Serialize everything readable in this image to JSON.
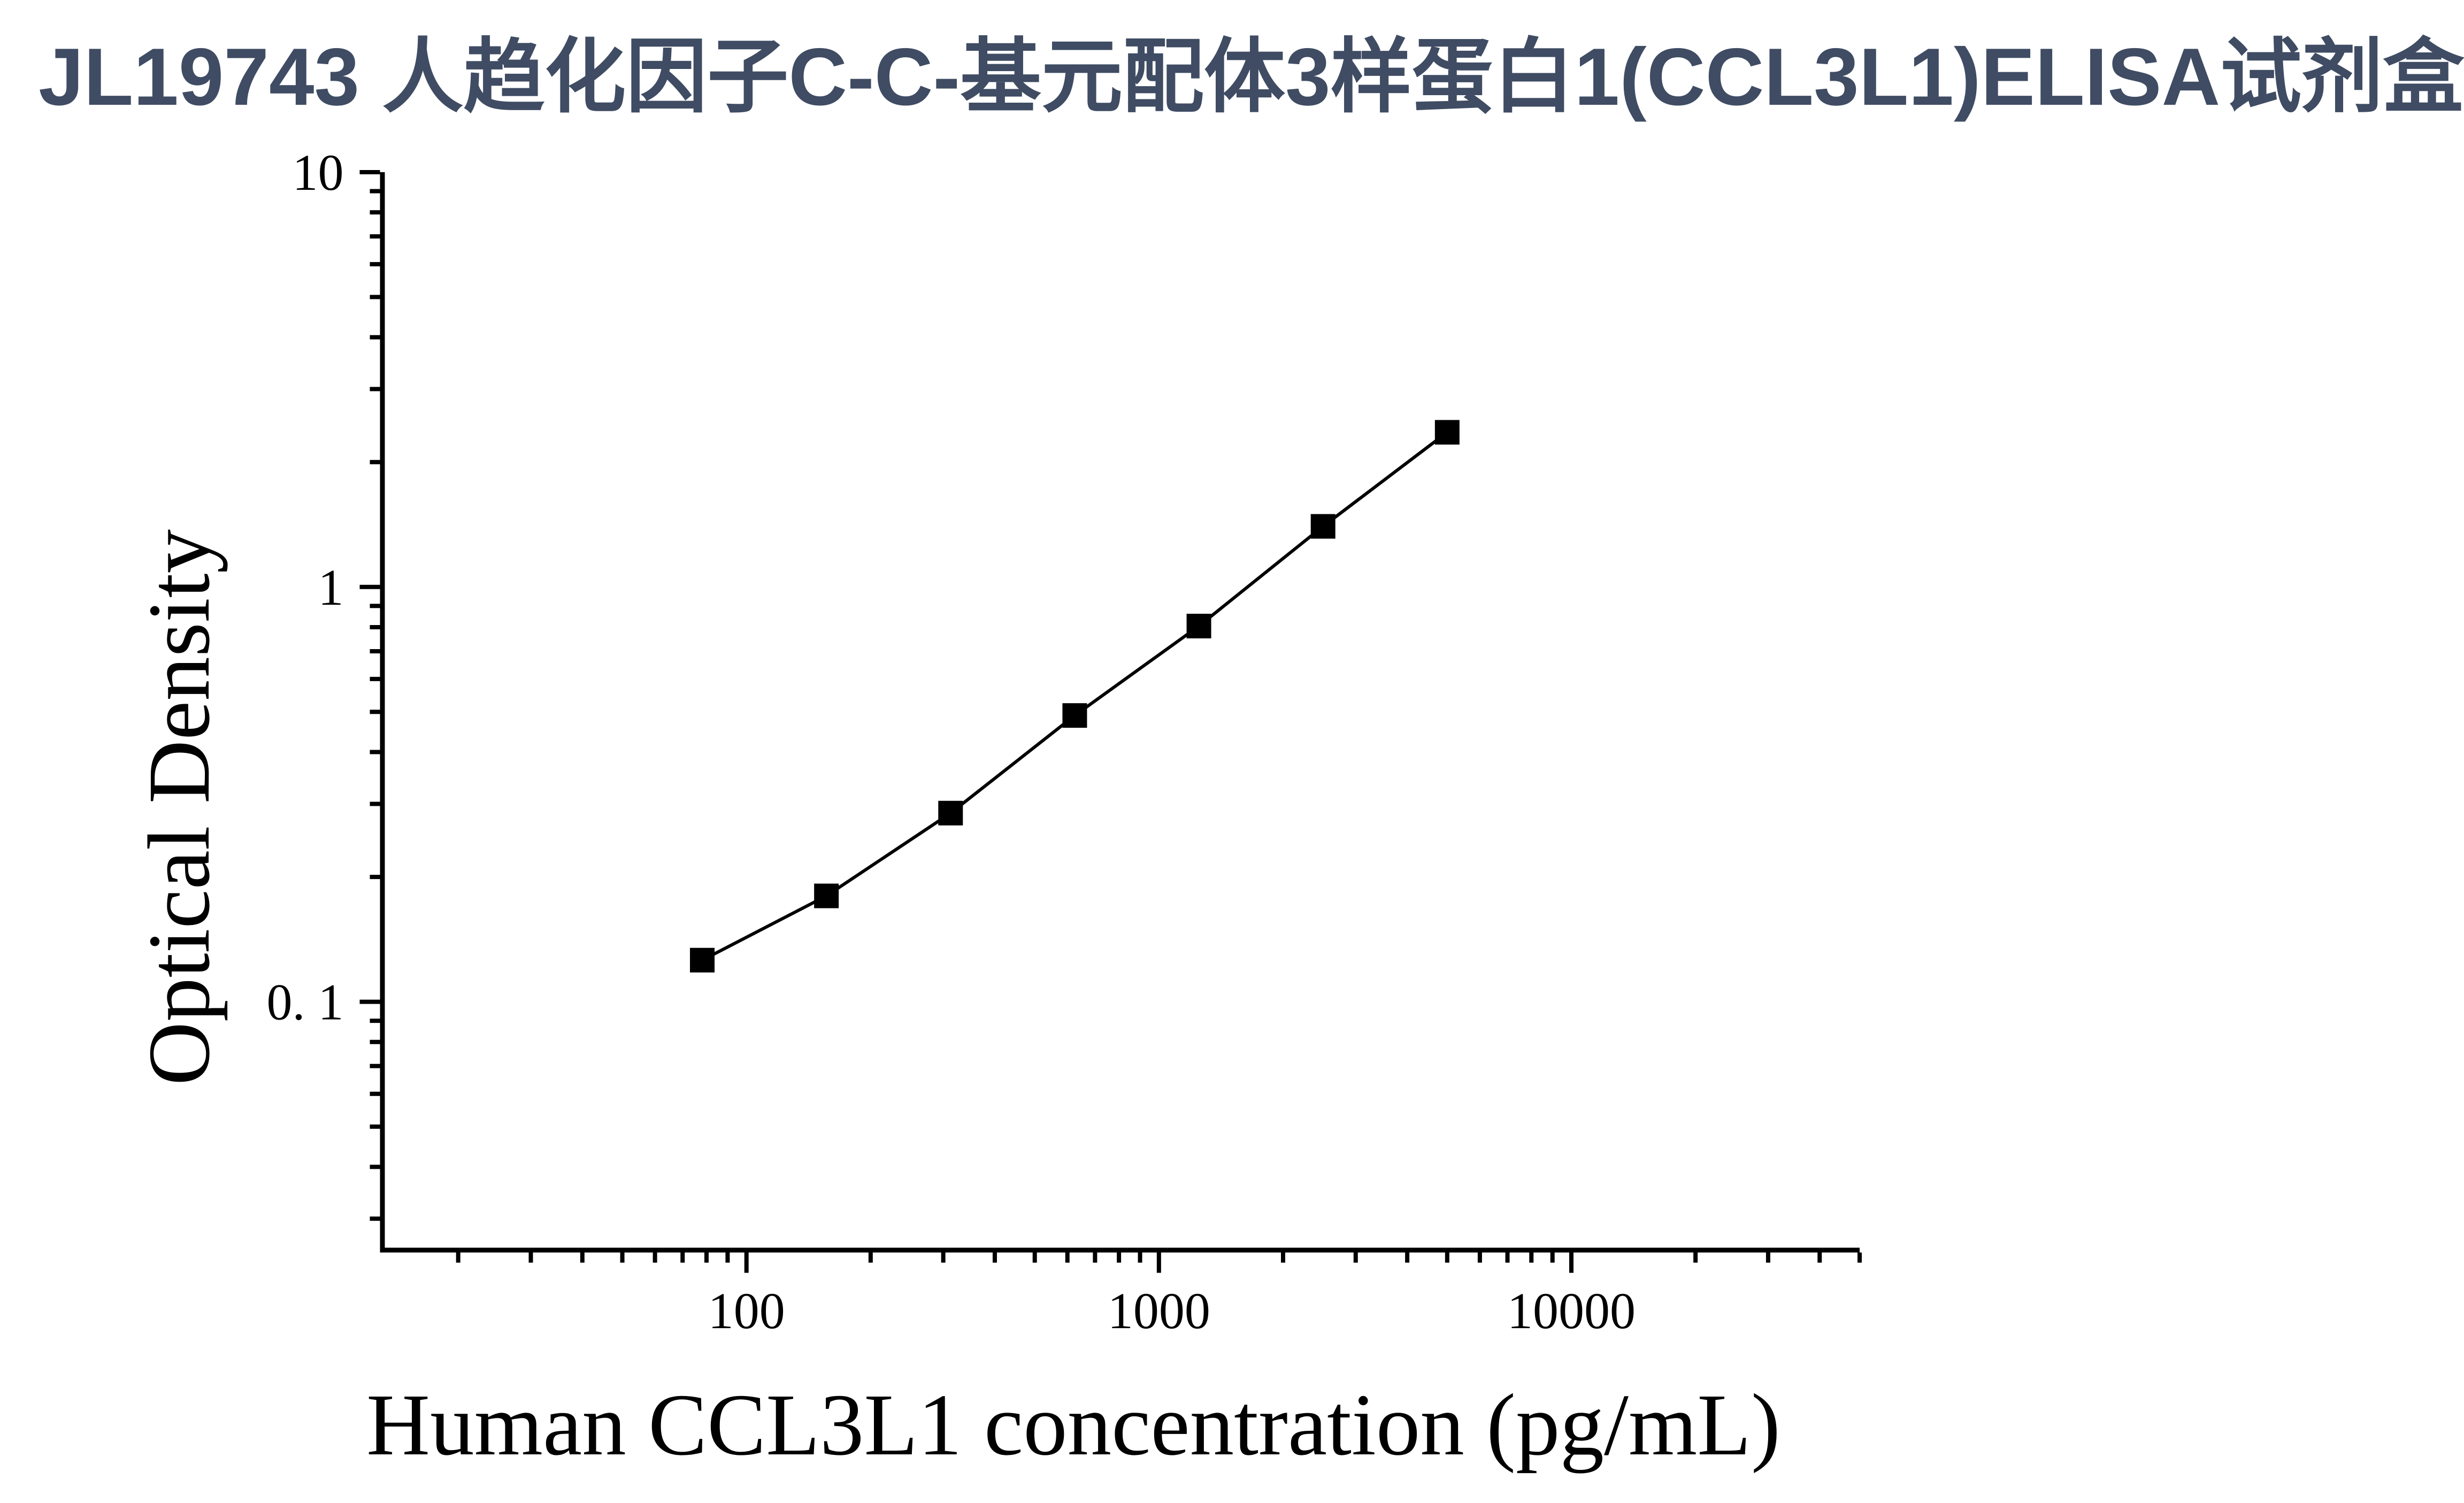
{
  "title": {
    "text": "JL19743 人趋化因子C-C-基元配体3样蛋白1(CCL3L1)ELISA试剂盒",
    "color": "#3F4C63"
  },
  "chart_data": {
    "type": "line",
    "title": "JL19743 人趋化因子C-C-基元配体3样蛋白1(CCL3L1)ELISA试剂盒",
    "xlabel": "Human CCL3L1 concentration (pg/mL)",
    "ylabel": "Optical Density",
    "x_scale": "log",
    "y_scale": "log",
    "xlim": [
      13.1,
      50000
    ],
    "ylim": [
      0.0252,
      10
    ],
    "grid": false,
    "legend": null,
    "marker": "filled-square",
    "line_color": "#000000",
    "marker_color": "#000000",
    "x": [
      78.125,
      156.25,
      312.5,
      625,
      1250,
      2500,
      5000
    ],
    "y": [
      0.126,
      0.18,
      0.285,
      0.49,
      0.805,
      1.4,
      2.36
    ],
    "x_axis": {
      "major_ticks": [
        100,
        1000,
        10000
      ],
      "major_labels": [
        "100",
        "1000",
        "10000"
      ],
      "minor_ticks": [
        20,
        30,
        40,
        50,
        60,
        70,
        80,
        90,
        200,
        300,
        400,
        500,
        600,
        700,
        800,
        900,
        2000,
        3000,
        4000,
        5000,
        6000,
        7000,
        8000,
        9000,
        20000,
        30000,
        40000,
        50000
      ]
    },
    "y_axis": {
      "major_ticks": [
        10,
        1,
        0.1
      ],
      "major_labels": [
        "10",
        "1",
        "0. 1"
      ],
      "minor_ticks": [
        9,
        8,
        7,
        6,
        5,
        4,
        3,
        2,
        0.9,
        0.8,
        0.7,
        0.6,
        0.5,
        0.4,
        0.3,
        0.2,
        0.09,
        0.08,
        0.07,
        0.06,
        0.05,
        0.04,
        0.03
      ]
    }
  }
}
